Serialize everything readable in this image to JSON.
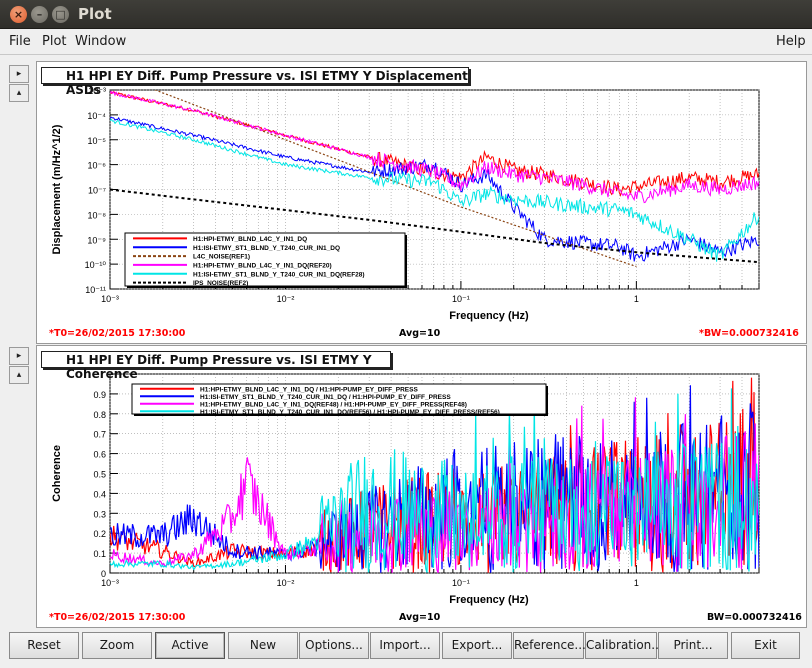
{
  "window": {
    "title": "Plot",
    "close_glyph": "×",
    "min_glyph": "–",
    "max_glyph": "□"
  },
  "menubar": {
    "items": [
      "File",
      "Plot",
      "Window"
    ],
    "help": "Help"
  },
  "side_buttons": {
    "next": "▸",
    "up": "▴"
  },
  "colors": {
    "red": "#ff0000",
    "blue": "#0000ff",
    "magenta": "#ff00ff",
    "cyan": "#00e5e5",
    "brown": "#8b4513",
    "black": "#000000",
    "status_red": "#ff0000"
  },
  "plot1": {
    "title": "H1 HPI EY Diff. Pump Pressure vs. ISI ETMY Y Displacement ASDs",
    "xlabel": "Frequency (Hz)",
    "ylabel": "Displacement (m/Hz^1/2)",
    "y_ticks": [
      "10⁻³",
      "10⁻⁴",
      "10⁻⁵",
      "10⁻⁶",
      "10⁻⁷",
      "10⁻⁸",
      "10⁻⁹",
      "10⁻¹⁰",
      "10⁻¹¹"
    ],
    "x_ticks": [
      "10⁻³",
      "10⁻²",
      "10⁻¹",
      "1"
    ],
    "legend": [
      {
        "label": "H1:HPI-ETMY_BLND_L4C_Y_IN1_DQ",
        "color": "#ff0000",
        "dash": false
      },
      {
        "label": "H1:ISI-ETMY_ST1_BLND_Y_T240_CUR_IN1_DQ",
        "color": "#0000ff",
        "dash": false
      },
      {
        "label": "L4C_NOISE(REF1)",
        "color": "#8b4513",
        "dash": true
      },
      {
        "label": "H1:HPI-ETMY_BLND_L4C_Y_IN1_DQ(REF20)",
        "color": "#ff00ff",
        "dash": false
      },
      {
        "label": "H1:ISI-ETMY_ST1_BLND_Y_T240_CUR_IN1_DQ(REF28)",
        "color": "#00e5e5",
        "dash": false
      },
      {
        "label": "IPS_NOISE(REF2)",
        "color": "#000000",
        "dash": true
      }
    ],
    "status_left": "*T0=26/02/2015 17:30:00",
    "status_mid": "Avg=10",
    "status_right": "*BW=0.000732416"
  },
  "plot2": {
    "title": "H1 HPI EY Diff. Pump Pressure vs. ISI ETMY Y Coherence",
    "xlabel": "Frequency (Hz)",
    "ylabel": "Coherence",
    "y_ticks": [
      "0.9",
      "0.8",
      "0.7",
      "0.6",
      "0.5",
      "0.4",
      "0.3",
      "0.2",
      "0.1",
      "0"
    ],
    "x_ticks": [
      "10⁻³",
      "10⁻²",
      "10⁻¹",
      "1"
    ],
    "legend": [
      {
        "label": "H1:HPI-ETMY_BLND_L4C_Y_IN1_DQ / H1:HPI-PUMP_EY_DIFF_PRESS",
        "color": "#ff0000"
      },
      {
        "label": "H1:ISI-ETMY_ST1_BLND_Y_T240_CUR_IN1_DQ / H1:HPI-PUMP_EY_DIFF_PRESS",
        "color": "#0000ff"
      },
      {
        "label": "H1:HPI-ETMY_BLND_L4C_Y_IN1_DQ(REF48) / H1:HPI-PUMP_EY_DIFF_PRESS(REF48)",
        "color": "#ff00ff"
      },
      {
        "label": "H1:ISI-ETMY_ST1_BLND_Y_T240_CUR_IN1_DQ(REF56) / H1:HPI-PUMP_EY_DIFF_PRESS(REF56)",
        "color": "#00e5e5"
      }
    ],
    "status_left": "*T0=26/02/2015 17:30:00",
    "status_mid": "Avg=10",
    "status_right": "BW=0.000732416"
  },
  "toolbar": {
    "buttons": [
      "Reset",
      "Zoom",
      "Active",
      "New",
      "Options...",
      "Import...",
      "Export...",
      "Reference...",
      "Calibration...",
      "Print...",
      "Exit"
    ]
  },
  "chart_data": [
    {
      "type": "line",
      "title": "H1 HPI EY Diff. Pump Pressure vs. ISI ETMY Y Displacement ASDs",
      "xlabel": "Frequency (Hz)",
      "ylabel": "Displacement (m/Hz^1/2)",
      "x_scale": "log",
      "y_scale": "log",
      "xlim": [
        0.001,
        5
      ],
      "ylim": [
        1e-11,
        0.001
      ],
      "grid": true,
      "legend_position": "bottom-left",
      "series": [
        {
          "name": "H1:HPI-ETMY_BLND_L4C_Y_IN1_DQ",
          "x": [
            0.001,
            0.003,
            0.01,
            0.03,
            0.07,
            0.1,
            0.14,
            0.2,
            0.3,
            0.5,
            0.8,
            1,
            2,
            3,
            5
          ],
          "y": [
            0.0008,
            0.00015,
            1.5e-05,
            2e-06,
            5e-07,
            3e-07,
            2e-06,
            6e-07,
            4e-07,
            2e-07,
            1e-07,
            1.3e-07,
            3e-07,
            2e-07,
            4e-07
          ]
        },
        {
          "name": "H1:ISI-ETMY_ST1_BLND_Y_T240_CUR_IN1_DQ",
          "x": [
            0.001,
            0.003,
            0.01,
            0.03,
            0.07,
            0.1,
            0.14,
            0.2,
            0.3,
            0.5,
            0.8,
            1,
            2,
            3,
            5
          ],
          "y": [
            8e-05,
            1.5e-05,
            2e-06,
            5e-07,
            1e-06,
            1.5e-07,
            4e-07,
            2e-08,
            1e-09,
            7e-10,
            5e-10,
            2e-10,
            1e-09,
            3e-10,
            1e-09
          ]
        },
        {
          "name": "L4C_NOISE(REF1)",
          "x": [
            0.001,
            0.01,
            0.1,
            1
          ],
          "y": [
            0.005,
            1e-05,
            2e-08,
            8e-11
          ]
        },
        {
          "name": "H1:HPI-ETMY_BLND_L4C_Y_IN1_DQ(REF20)",
          "x": [
            0.001,
            0.003,
            0.01,
            0.03,
            0.07,
            0.1,
            0.14,
            0.2,
            0.3,
            0.5,
            0.8,
            1,
            2,
            3,
            5
          ],
          "y": [
            0.0008,
            0.00015,
            1.5e-05,
            2e-06,
            5e-07,
            1.5e-07,
            8e-07,
            4e-07,
            3e-07,
            1.5e-07,
            7e-08,
            5e-08,
            1.5e-07,
            1e-07,
            2e-07
          ]
        },
        {
          "name": "H1:ISI-ETMY_ST1_BLND_Y_T240_CUR_IN1_DQ(REF28)",
          "x": [
            0.001,
            0.003,
            0.01,
            0.03,
            0.07,
            0.1,
            0.14,
            0.2,
            0.3,
            0.5,
            0.8,
            1,
            2,
            3,
            5
          ],
          "y": [
            6e-05,
            1e-05,
            1e-06,
            3e-07,
            2e-07,
            3e-08,
            7e-08,
            4e-08,
            3e-08,
            2e-08,
            1.5e-08,
            1e-08,
            1e-09,
            2e-10,
            1e-08
          ]
        },
        {
          "name": "IPS_NOISE(REF2)",
          "x": [
            0.001,
            0.003,
            0.01,
            0.03,
            0.1,
            0.3,
            1,
            2,
            5
          ],
          "y": [
            1e-07,
            4e-08,
            1.5e-08,
            6e-09,
            2e-09,
            7e-10,
            3e-10,
            2e-10,
            1.2e-10
          ]
        }
      ]
    },
    {
      "type": "line",
      "title": "H1 HPI EY Diff. Pump Pressure vs. ISI ETMY Y Coherence",
      "xlabel": "Frequency (Hz)",
      "ylabel": "Coherence",
      "x_scale": "log",
      "xlim": [
        0.001,
        5
      ],
      "ylim": [
        0,
        1
      ],
      "grid": true,
      "legend_position": "top-left",
      "series": [
        {
          "name": "H1:HPI-ETMY_BLND_L4C_Y_IN1_DQ / H1:HPI-PUMP_EY_DIFF_PRESS",
          "x": [
            0.001,
            0.002,
            0.003,
            0.005,
            0.01,
            0.03,
            0.1,
            0.3,
            1,
            3,
            5
          ],
          "y": [
            0.2,
            0.12,
            0.05,
            0.12,
            0.1,
            0.2,
            0.25,
            0.3,
            0.35,
            0.4,
            0.45
          ]
        },
        {
          "name": "H1:ISI-ETMY_ST1_BLND_Y_T240_CUR_IN1_DQ / H1:HPI-PUMP_EY_DIFF_PRESS",
          "x": [
            0.001,
            0.002,
            0.003,
            0.005,
            0.01,
            0.03,
            0.1,
            0.3,
            1,
            3,
            5
          ],
          "y": [
            0.2,
            0.2,
            0.3,
            0.12,
            0.1,
            0.2,
            0.3,
            0.35,
            0.35,
            0.4,
            0.45
          ]
        },
        {
          "name": "H1:HPI-ETMY_BLND_L4C_Y_IN1_DQ(REF48) / H1:HPI-PUMP_EY_DIFF_PRESS(REF48)",
          "x": [
            0.001,
            0.002,
            0.003,
            0.005,
            0.006,
            0.01,
            0.03,
            0.1,
            0.3,
            1,
            3,
            5
          ],
          "y": [
            0.1,
            0.05,
            0.1,
            0.3,
            0.5,
            0.1,
            0.2,
            0.2,
            0.25,
            0.3,
            0.35,
            0.4
          ]
        },
        {
          "name": "H1:ISI-ETMY_ST1_BLND_Y_T240_CUR_IN1_DQ(REF56) / H1:HPI-PUMP_EY_DIFF_PRESS(REF56)",
          "x": [
            0.001,
            0.002,
            0.003,
            0.005,
            0.01,
            0.03,
            0.1,
            0.3,
            1,
            3,
            5
          ],
          "y": [
            0.05,
            0.05,
            0.03,
            0.05,
            0.1,
            0.3,
            0.25,
            0.3,
            0.3,
            0.35,
            0.4
          ]
        }
      ]
    }
  ]
}
